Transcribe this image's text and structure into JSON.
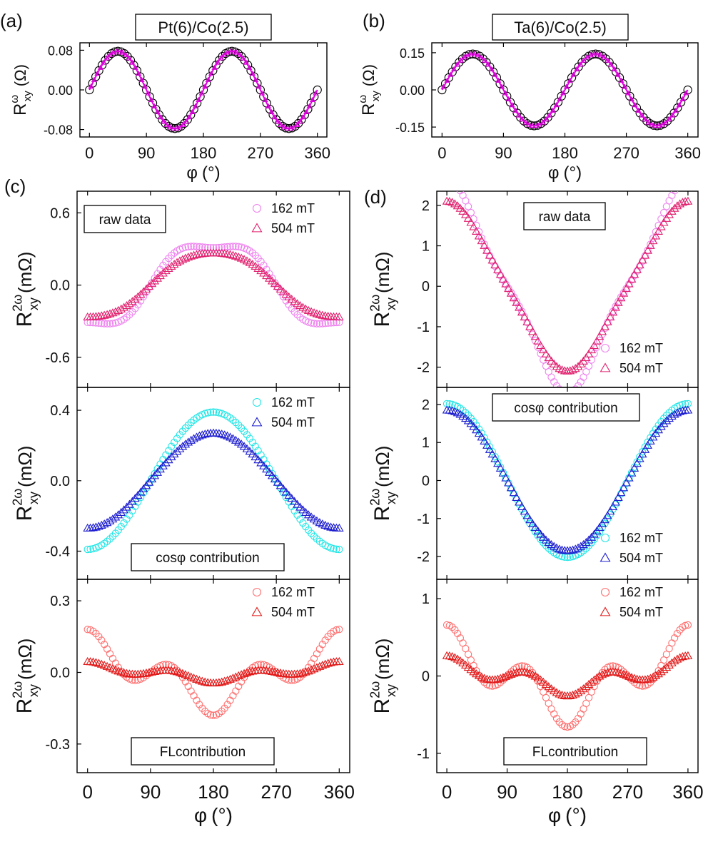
{
  "colors": {
    "magenta_circle": "#ee82ee",
    "magenta_triangle": "#e0206e",
    "cyan_circle": "#22e5e5",
    "blue_triangle": "#1c1ccf",
    "red_circle": "#ff6f6f",
    "red_triangle": "#e01818",
    "fit_line": "#dd00dd",
    "black": "#000000"
  },
  "chart_data": [
    {
      "id": "a",
      "panel_label": "(a)",
      "header": "Pt(6)/Co(2.5)",
      "type": "scatter",
      "ylabel": {
        "main": "R",
        "sup": "ω",
        "sub": "xy",
        "unit": "(Ω)"
      },
      "xlabel": {
        "main": "φ",
        "unit": "(°)"
      },
      "xlim": [
        -15,
        375
      ],
      "ylim": [
        -0.095,
        0.095
      ],
      "yticks": [
        -0.08,
        0.0,
        0.08
      ],
      "ytick_labels": [
        "-0.08",
        "0.00",
        "0.08"
      ],
      "xticks": [
        0,
        90,
        180,
        270,
        360
      ],
      "xtick_labels": [
        "0",
        "90",
        "180",
        "270",
        "360"
      ],
      "model": {
        "kind": "sin2phi",
        "amplitude": 0.078
      },
      "series": [
        {
          "name": "data",
          "marker": "circle",
          "color": "#000000"
        },
        {
          "name": "fit",
          "marker": "line",
          "color": "#dd00dd"
        }
      ]
    },
    {
      "id": "b",
      "panel_label": "(b)",
      "header": "Ta(6)/Co(2.5)",
      "type": "scatter",
      "ylabel": {
        "main": "R",
        "sup": "ω",
        "sub": "xy",
        "unit": "(Ω)"
      },
      "xlabel": {
        "main": "φ",
        "unit": "(°)"
      },
      "xlim": [
        -15,
        375
      ],
      "ylim": [
        -0.19,
        0.19
      ],
      "yticks": [
        -0.15,
        0.0,
        0.15
      ],
      "ytick_labels": [
        "-0.15",
        "0.00",
        "0.15"
      ],
      "xticks": [
        0,
        90,
        180,
        270,
        360
      ],
      "xtick_labels": [
        "0",
        "90",
        "180",
        "270",
        "360"
      ],
      "model": {
        "kind": "sin2phi",
        "amplitude": 0.145
      },
      "series": [
        {
          "name": "data",
          "marker": "circle",
          "color": "#000000"
        },
        {
          "name": "fit",
          "marker": "line",
          "color": "#dd00dd"
        }
      ]
    },
    {
      "id": "c1",
      "panel_label": "(c)",
      "type": "scatter",
      "ylabel": {
        "main": "R",
        "sup": "2ω",
        "sub": "xy",
        "unit": "(mΩ)"
      },
      "xlim": [
        -15,
        375
      ],
      "ylim": [
        -0.85,
        0.78
      ],
      "yticks": [
        -0.6,
        0.0,
        0.6
      ],
      "ytick_labels": [
        "-0.6",
        "0.0",
        "0.6"
      ],
      "annotation": "raw data",
      "legend": [
        "162 mT",
        "504 mT"
      ],
      "series": [
        {
          "name": "162 mT",
          "marker": "circle",
          "color": "#ee82ee",
          "model": {
            "kind": "raw",
            "cos": -0.45,
            "fl": 0.14,
            "beta": 1.3
          }
        },
        {
          "name": "504 mT",
          "marker": "triangle",
          "color": "#e0206e",
          "model": {
            "kind": "raw",
            "cos": -0.3,
            "fl": 0.034,
            "beta": 1.3
          }
        }
      ]
    },
    {
      "id": "c2",
      "type": "scatter",
      "ylabel": {
        "main": "R",
        "sup": "2ω",
        "sub": "xy",
        "unit": "(mΩ)"
      },
      "xlim": [
        -15,
        375
      ],
      "ylim": [
        -0.56,
        0.53
      ],
      "yticks": [
        -0.4,
        0.0,
        0.4
      ],
      "ytick_labels": [
        "-0.4",
        "0.0",
        "0.4"
      ],
      "annotation": "cosφ contribution",
      "legend": [
        "162 mT",
        "504 mT"
      ],
      "series": [
        {
          "name": "162 mT",
          "marker": "circle",
          "color": "#22e5e5",
          "model": {
            "kind": "cos",
            "amplitude": -0.39
          }
        },
        {
          "name": "504 mT",
          "marker": "triangle",
          "color": "#1c1ccf",
          "model": {
            "kind": "cos",
            "amplitude": -0.27
          }
        }
      ]
    },
    {
      "id": "c3",
      "type": "scatter",
      "ylabel": {
        "main": "R",
        "sup": "2ω",
        "sub": "xy",
        "unit": "(mΩ)"
      },
      "xlabel": {
        "main": "φ",
        "unit": "(°)"
      },
      "xlim": [
        -15,
        375
      ],
      "ylim": [
        -0.42,
        0.39
      ],
      "yticks": [
        -0.3,
        0.0,
        0.3
      ],
      "ytick_labels": [
        "-0.3",
        "0.0",
        "0.3"
      ],
      "xticks": [
        0,
        90,
        180,
        270,
        360
      ],
      "xtick_labels": [
        "0",
        "90",
        "180",
        "270",
        "360"
      ],
      "annotation": "FLcontribution",
      "legend": [
        "162 mT",
        "504 mT"
      ],
      "series": [
        {
          "name": "162 mT",
          "marker": "circle",
          "color": "#ff6f6f",
          "model": {
            "kind": "fl",
            "amplitude": 0.18,
            "beta": 1.3
          }
        },
        {
          "name": "504 mT",
          "marker": "triangle",
          "color": "#e01818",
          "model": {
            "kind": "fl",
            "amplitude": 0.045,
            "beta": 1.3
          }
        }
      ]
    },
    {
      "id": "d1",
      "panel_label": "(d)",
      "type": "scatter",
      "ylabel": {
        "main": "R",
        "sup": "2ω",
        "sub": "xy",
        "unit": "(mΩ)"
      },
      "xlim": [
        -15,
        375
      ],
      "ylim": [
        -2.5,
        2.35
      ],
      "yticks": [
        -2,
        -1,
        0,
        1,
        2
      ],
      "ytick_labels": [
        "-2",
        "-1",
        "0",
        "1",
        "2"
      ],
      "annotation": "raw data",
      "legend": [
        "162 mT",
        "504 mT"
      ],
      "series": [
        {
          "name": "162 mT",
          "marker": "circle",
          "color": "#ee82ee",
          "model": {
            "kind": "raw",
            "cos": 2.0,
            "fl": 0.65,
            "beta": 1.25
          }
        },
        {
          "name": "504 mT",
          "marker": "triangle",
          "color": "#e0206e",
          "model": {
            "kind": "raw",
            "cos": 1.85,
            "fl": 0.25,
            "beta": 1.25
          }
        }
      ]
    },
    {
      "id": "d2",
      "type": "scatter",
      "ylabel": {
        "main": "R",
        "sup": "2ω",
        "sub": "xy",
        "unit": "(mΩ)"
      },
      "xlim": [
        -15,
        375
      ],
      "ylim": [
        -2.6,
        2.45
      ],
      "yticks": [
        -2,
        -1,
        0,
        1,
        2
      ],
      "ytick_labels": [
        "-2",
        "-1",
        "0",
        "1",
        "2"
      ],
      "annotation": "cosφ contribution",
      "legend": [
        "162 mT",
        "504 mT"
      ],
      "series": [
        {
          "name": "162 mT",
          "marker": "circle",
          "color": "#22e5e5",
          "model": {
            "kind": "cos",
            "amplitude": 2.02
          }
        },
        {
          "name": "504 mT",
          "marker": "triangle",
          "color": "#1c1ccf",
          "model": {
            "kind": "cos",
            "amplitude": 1.85
          }
        }
      ]
    },
    {
      "id": "d3",
      "type": "scatter",
      "ylabel": {
        "main": "R",
        "sup": "2ω",
        "sub": "xy",
        "unit": "(mΩ)"
      },
      "xlabel": {
        "main": "φ",
        "unit": "(°)"
      },
      "xlim": [
        -15,
        375
      ],
      "ylim": [
        -1.25,
        1.25
      ],
      "yticks": [
        -1,
        0,
        1
      ],
      "ytick_labels": [
        "-1",
        "0",
        "1"
      ],
      "xticks": [
        0,
        90,
        180,
        270,
        360
      ],
      "xtick_labels": [
        "0",
        "90",
        "180",
        "270",
        "360"
      ],
      "annotation": "FLcontribution",
      "legend": [
        "162 mT",
        "504 mT"
      ],
      "series": [
        {
          "name": "162 mT",
          "marker": "circle",
          "color": "#ff6f6f",
          "model": {
            "kind": "fl",
            "amplitude": 0.66,
            "beta": 1.25
          }
        },
        {
          "name": "504 mT",
          "marker": "triangle",
          "color": "#e01818",
          "model": {
            "kind": "fl",
            "amplitude": 0.26,
            "beta": 1.25
          }
        }
      ]
    }
  ]
}
